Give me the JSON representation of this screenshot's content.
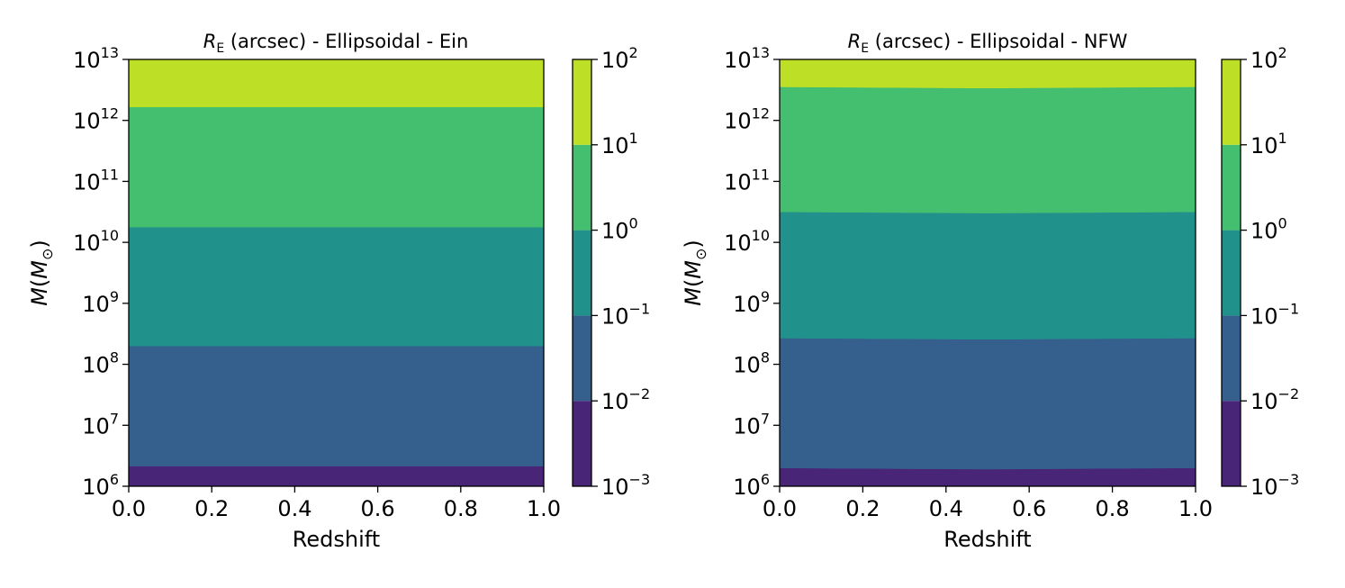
{
  "chart_data": [
    {
      "type": "contourf",
      "title_symbol": "R",
      "title_subscript": "E",
      "title_rest": " (arcsec) - Ellipsoidal - Ein",
      "xlabel": "Redshift",
      "ylabel_main": "M",
      "ylabel_paren_open": "(",
      "ylabel_inner": "M",
      "ylabel_sub": "⊙",
      "ylabel_paren_close": ")",
      "xlim": [
        0.0,
        1.0
      ],
      "ylim_log10": [
        6,
        13
      ],
      "xticks": [
        "0.0",
        "0.2",
        "0.4",
        "0.6",
        "0.8",
        "1.0"
      ],
      "yticks_exp": [
        "6",
        "7",
        "8",
        "9",
        "10",
        "11",
        "12",
        "13"
      ],
      "ytick_base": "10",
      "boundaries": [
        {
          "name": "10^-2",
          "x": [
            0.0,
            0.5,
            1.0
          ],
          "log10M": [
            6.33,
            6.33,
            6.33
          ]
        },
        {
          "name": "10^-1",
          "x": [
            0.0,
            0.5,
            1.0
          ],
          "log10M": [
            8.3,
            8.3,
            8.3
          ]
        },
        {
          "name": "10^0",
          "x": [
            0.0,
            0.5,
            1.0
          ],
          "log10M": [
            10.25,
            10.25,
            10.25
          ]
        },
        {
          "name": "10^1",
          "x": [
            0.0,
            0.5,
            1.0
          ],
          "log10M": [
            12.22,
            12.22,
            12.22
          ]
        }
      ],
      "colorbar": {
        "levels_log10": [
          -3,
          -2,
          -1,
          0,
          1,
          2
        ],
        "tick_base": "10",
        "tick_exp": [
          "−3",
          "−2",
          "−1",
          "0",
          "1",
          "2"
        ],
        "colors": [
          "#482576",
          "#355f8d",
          "#21918c",
          "#44bf70",
          "#bddf26"
        ]
      }
    },
    {
      "type": "contourf",
      "title_symbol": "R",
      "title_subscript": "E",
      "title_rest": " (arcsec) - Ellipsoidal - NFW",
      "xlabel": "Redshift",
      "ylabel_main": "M",
      "ylabel_paren_open": "(",
      "ylabel_inner": "M",
      "ylabel_sub": "⊙",
      "ylabel_paren_close": ")",
      "xlim": [
        0.0,
        1.0
      ],
      "ylim_log10": [
        6,
        13
      ],
      "xticks": [
        "0.0",
        "0.2",
        "0.4",
        "0.6",
        "0.8",
        "1.0"
      ],
      "yticks_exp": [
        "6",
        "7",
        "8",
        "9",
        "10",
        "11",
        "12",
        "13"
      ],
      "ytick_base": "10",
      "boundaries": [
        {
          "name": "10^-2",
          "x": [
            0.0,
            0.5,
            1.0
          ],
          "log10M": [
            6.3,
            6.28,
            6.3
          ]
        },
        {
          "name": "10^-1",
          "x": [
            0.0,
            0.5,
            1.0
          ],
          "log10M": [
            8.43,
            8.41,
            8.43
          ]
        },
        {
          "name": "10^0",
          "x": [
            0.0,
            0.5,
            1.0
          ],
          "log10M": [
            10.5,
            10.48,
            10.5
          ]
        },
        {
          "name": "10^1",
          "x": [
            0.0,
            0.5,
            1.0
          ],
          "log10M": [
            12.55,
            12.53,
            12.55
          ]
        }
      ],
      "colorbar": {
        "levels_log10": [
          -3,
          -2,
          -1,
          0,
          1,
          2
        ],
        "tick_base": "10",
        "tick_exp": [
          "−3",
          "−2",
          "−1",
          "0",
          "1",
          "2"
        ],
        "colors": [
          "#482576",
          "#355f8d",
          "#21918c",
          "#44bf70",
          "#bddf26"
        ]
      }
    }
  ]
}
